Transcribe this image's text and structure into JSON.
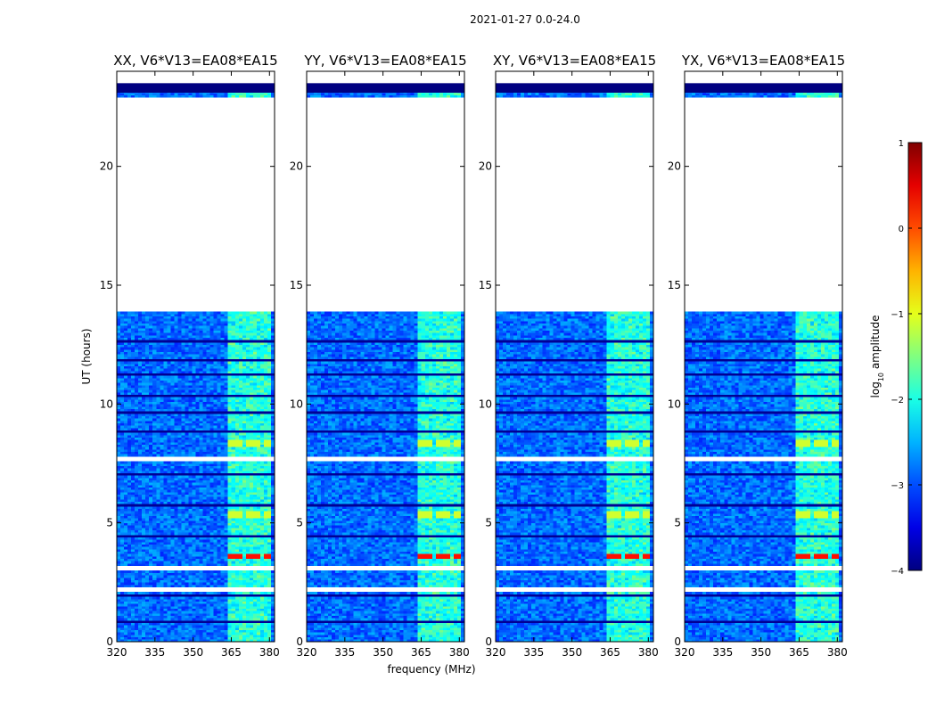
{
  "chart_data": {
    "type": "heatmap",
    "suptitle": "2021-01-27 0.0-24.0",
    "xlabel": "frequency (MHz)",
    "ylabel": "UT (hours)",
    "xlim": [
      320,
      382
    ],
    "ylim": [
      0,
      24
    ],
    "xticks": [
      320,
      335,
      350,
      365,
      380
    ],
    "yticks": [
      0,
      5,
      10,
      15,
      20
    ],
    "panels": [
      {
        "title": "XX, V6*V13=EA08*EA15"
      },
      {
        "title": "YY, V6*V13=EA08*EA15"
      },
      {
        "title": "XY, V6*V13=EA08*EA15"
      },
      {
        "title": "YX, V6*V13=EA08*EA15"
      }
    ],
    "colorbar": {
      "label": "log",
      "label_sub": "10",
      "label_rest": " amplitude",
      "range": [
        -4,
        1
      ],
      "ticks": [
        1,
        0,
        -1,
        -2,
        -3,
        -4
      ],
      "colormap": "jet"
    },
    "data_gaps_ut_hours": [
      [
        13.9,
        22.8
      ],
      [
        3.0,
        3.15
      ],
      [
        2.05,
        2.2
      ],
      [
        7.6,
        7.8
      ]
    ],
    "bright_band_mhz": [
      363,
      381
    ],
    "strong_rfi_ut_hours": [
      3.55,
      5.3,
      8.3
    ]
  }
}
